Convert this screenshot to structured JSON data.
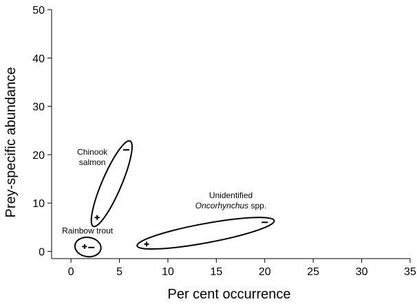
{
  "chart_data": {
    "type": "scatter",
    "xlabel": "Per cent occurrence",
    "ylabel": "Prey-specific abundance",
    "xlim": [
      -2,
      35
    ],
    "ylim": [
      -1.5,
      50
    ],
    "xticks": [
      0,
      5,
      10,
      15,
      20,
      25,
      30,
      35
    ],
    "yticks": [
      0,
      10,
      20,
      30,
      40,
      50
    ],
    "grid": false,
    "groups": [
      {
        "label_lines": [
          "Chinook",
          "salmon"
        ],
        "italic_lines": [],
        "label_at": [
          2.2,
          20
        ],
        "points": [
          {
            "x": 2.7,
            "y": 7.0,
            "marker": "+"
          },
          {
            "x": 5.7,
            "y": 21.0,
            "marker": "-"
          }
        ]
      },
      {
        "label_lines": [
          "Unidentified",
          "Oncorhynchus spp."
        ],
        "italic_lines": [
          "Oncorhynchus"
        ],
        "label_at": [
          16.5,
          11
        ],
        "points": [
          {
            "x": 7.8,
            "y": 1.5,
            "marker": "+"
          },
          {
            "x": 20.0,
            "y": 6.0,
            "marker": "-"
          }
        ]
      },
      {
        "label_lines": [
          "Rainbow trout"
        ],
        "italic_lines": [],
        "label_at": [
          1.7,
          3.7
        ],
        "points": [
          {
            "x": 1.4,
            "y": 1.0,
            "marker": "+"
          },
          {
            "x": 2.1,
            "y": 0.8,
            "marker": "-"
          }
        ]
      }
    ]
  }
}
